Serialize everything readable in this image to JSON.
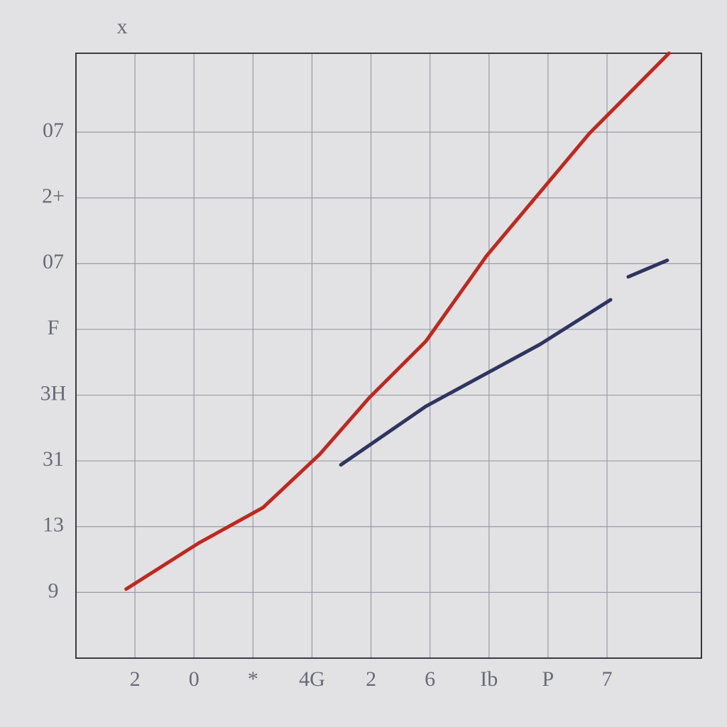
{
  "chart_data": {
    "type": "line",
    "title": "x",
    "xlim": [
      0,
      10.6
    ],
    "ylim": [
      0,
      9.2
    ],
    "xticks": [
      {
        "value": 1,
        "label": "2"
      },
      {
        "value": 2,
        "label": "0"
      },
      {
        "value": 3,
        "label": "*"
      },
      {
        "value": 4,
        "label": "4G"
      },
      {
        "value": 5,
        "label": "2"
      },
      {
        "value": 6,
        "label": "6"
      },
      {
        "value": 7,
        "label": "Ib"
      },
      {
        "value": 8,
        "label": "P"
      },
      {
        "value": 9,
        "label": "7"
      }
    ],
    "yticks": [
      {
        "value": 1,
        "label": "9"
      },
      {
        "value": 2,
        "label": "13"
      },
      {
        "value": 3,
        "label": "31"
      },
      {
        "value": 4,
        "label": "3H"
      },
      {
        "value": 5,
        "label": "F"
      },
      {
        "value": 6,
        "label": "07"
      },
      {
        "value": 7,
        "label": "2+"
      },
      {
        "value": 8,
        "label": "07"
      }
    ],
    "grid": true,
    "series": [
      {
        "color": "#c0281e",
        "x": [
          0.85,
          2.08,
          3.17,
          4.13,
          4.97,
          5.93,
          6.96,
          8.7,
          10.05
        ],
        "values": [
          1.05,
          1.75,
          2.29,
          3.1,
          3.96,
          4.82,
          6.12,
          7.98,
          9.2
        ]
      },
      {
        "color": "#2e3560",
        "x": [
          4.49,
          5.93,
          7.86,
          9.06,
          null,
          9.36,
          10.02
        ],
        "values": [
          2.94,
          3.83,
          4.77,
          5.45,
          null,
          5.8,
          6.05
        ]
      }
    ]
  }
}
